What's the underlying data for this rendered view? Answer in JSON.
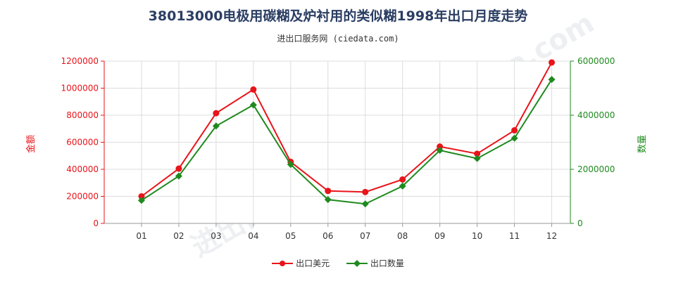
{
  "header": {
    "title": "38013000电极用碳糊及炉衬用的类似糊1998年出口月度走势",
    "subtitle": "进出口服务网 (ciedata.com)"
  },
  "watermark_text": "进出口服务网 www.ciedata.com",
  "chart_data": {
    "type": "line",
    "categories": [
      "01",
      "02",
      "03",
      "04",
      "05",
      "06",
      "07",
      "08",
      "09",
      "10",
      "11",
      "12"
    ],
    "series": [
      {
        "name": "出口美元",
        "axis": "left",
        "color": "#e8141a",
        "values": [
          200000,
          405000,
          815000,
          990000,
          455000,
          240000,
          232000,
          325000,
          568000,
          515000,
          688000,
          1190000
        ]
      },
      {
        "name": "出口数量",
        "axis": "right",
        "color": "#1f8a1f",
        "values": [
          850000,
          1750000,
          3600000,
          4380000,
          2180000,
          880000,
          720000,
          1380000,
          2700000,
          2400000,
          3150000,
          5320000
        ]
      }
    ],
    "ylabel_left": "金额",
    "ylabel_right": "数量",
    "ylim_left": [
      0,
      1200000
    ],
    "ylim_right": [
      0,
      6000000
    ],
    "yticks_left": [
      "0",
      "200000",
      "400000",
      "600000",
      "800000",
      "1000000",
      "1200000"
    ],
    "yticks_right": [
      "0",
      "2000000",
      "4000000",
      "6000000"
    ],
    "left_axis_color": "#e8141a",
    "right_axis_color": "#1f8a1f",
    "grid": true,
    "legend_position": "bottom"
  }
}
